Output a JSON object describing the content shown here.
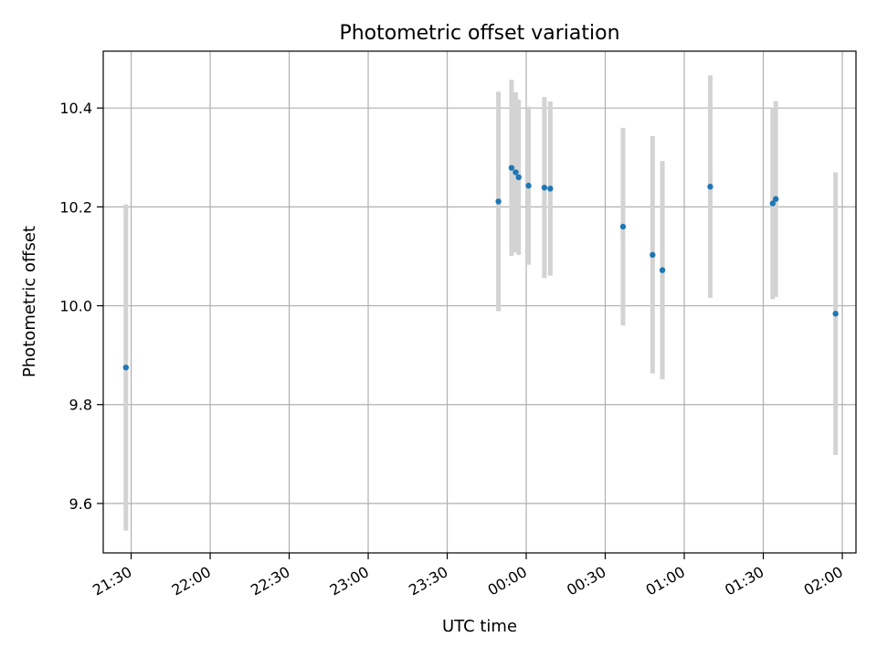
{
  "chart_data": {
    "type": "scatter",
    "title": "Photometric offset variation",
    "xlabel": "UTC time",
    "ylabel": "Photometric offset",
    "x_axis_type": "time",
    "xlim": [
      "2000-01-01T21:19:24",
      "2000-01-02T02:05:12"
    ],
    "ylim": [
      9.5,
      10.515
    ],
    "grid": true,
    "x_ticks": [
      {
        "value": "2000-01-01T21:30:00",
        "label": "21:30"
      },
      {
        "value": "2000-01-01T22:00:00",
        "label": "22:00"
      },
      {
        "value": "2000-01-01T22:30:00",
        "label": "22:30"
      },
      {
        "value": "2000-01-01T23:00:00",
        "label": "23:00"
      },
      {
        "value": "2000-01-01T23:30:00",
        "label": "23:30"
      },
      {
        "value": "2000-01-02T00:00:00",
        "label": "00:00"
      },
      {
        "value": "2000-01-02T00:30:00",
        "label": "00:30"
      },
      {
        "value": "2000-01-02T01:00:00",
        "label": "01:00"
      },
      {
        "value": "2000-01-02T01:30:00",
        "label": "01:30"
      },
      {
        "value": "2000-01-02T02:00:00",
        "label": "02:00"
      }
    ],
    "y_ticks": [
      {
        "value": 9.6,
        "label": "9.6"
      },
      {
        "value": 9.8,
        "label": "9.8"
      },
      {
        "value": 10.0,
        "label": "10.0"
      },
      {
        "value": 10.2,
        "label": "10.2"
      },
      {
        "value": 10.4,
        "label": "10.4"
      }
    ],
    "point_color": "#1f77b4",
    "errorbar_color": "#d3d3d3",
    "points": [
      {
        "t": "2000-01-01T21:28:00",
        "y": 9.875,
        "yerr": 0.33
      },
      {
        "t": "2000-01-01T23:49:27",
        "y": 10.211,
        "yerr": 0.222
      },
      {
        "t": "2000-01-01T23:54:25",
        "y": 10.279,
        "yerr": 0.178
      },
      {
        "t": "2000-01-01T23:56:00",
        "y": 10.27,
        "yerr": 0.162
      },
      {
        "t": "2000-01-01T23:57:08",
        "y": 10.26,
        "yerr": 0.157
      },
      {
        "t": "2000-01-02T00:00:52",
        "y": 10.243,
        "yerr": 0.16
      },
      {
        "t": "2000-01-02T00:06:54",
        "y": 10.239,
        "yerr": 0.183
      },
      {
        "t": "2000-01-02T00:09:08",
        "y": 10.237,
        "yerr": 0.176
      },
      {
        "t": "2000-01-02T00:36:45",
        "y": 10.16,
        "yerr": 0.2
      },
      {
        "t": "2000-01-02T00:47:58",
        "y": 10.103,
        "yerr": 0.24
      },
      {
        "t": "2000-01-02T00:51:42",
        "y": 10.072,
        "yerr": 0.221
      },
      {
        "t": "2000-01-02T01:09:52",
        "y": 10.241,
        "yerr": 0.225
      },
      {
        "t": "2000-01-02T01:33:34",
        "y": 10.207,
        "yerr": 0.194
      },
      {
        "t": "2000-01-02T01:34:45",
        "y": 10.216,
        "yerr": 0.198
      },
      {
        "t": "2000-01-02T01:57:27",
        "y": 9.984,
        "yerr": 0.286
      }
    ]
  }
}
